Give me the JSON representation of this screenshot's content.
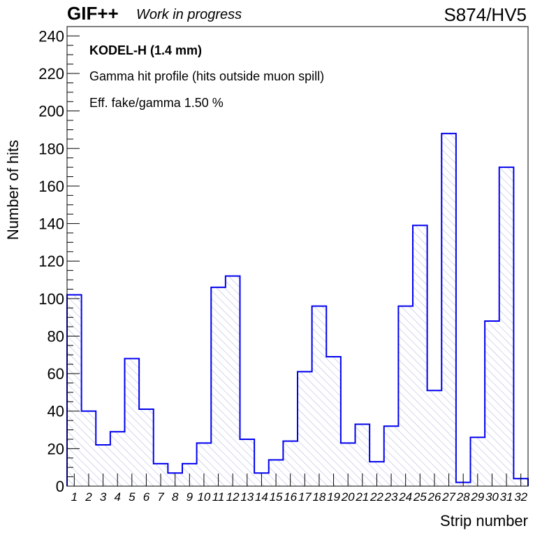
{
  "header": {
    "brand": "GIF++",
    "status": "Work in progress",
    "chamber": "S874/HV5"
  },
  "colors": {
    "series": "#0000ee",
    "hatch": "#aab0dd",
    "axis": "#000000"
  },
  "chart_data": {
    "type": "bar",
    "style": "histogram-step-hatched",
    "xlabel": "Strip number",
    "ylabel": "Number of hits",
    "ylim": [
      0,
      245
    ],
    "yticks": [
      0,
      20,
      40,
      60,
      80,
      100,
      120,
      140,
      160,
      180,
      200,
      220,
      240
    ],
    "grid": false,
    "annotations": [
      "KODEL-H (1.4 mm)",
      "Gamma hit profile (hits outside muon spill)",
      "Eff. fake/gamma 1.50 %"
    ],
    "categories": [
      "1",
      "2",
      "3",
      "4",
      "5",
      "6",
      "7",
      "8",
      "9",
      "10",
      "11",
      "12",
      "13",
      "14",
      "15",
      "16",
      "17",
      "18",
      "19",
      "20",
      "21",
      "22",
      "23",
      "24",
      "25",
      "26",
      "27",
      "28",
      "29",
      "30",
      "31",
      "32"
    ],
    "values": [
      102,
      40,
      22,
      29,
      68,
      41,
      12,
      7,
      12,
      23,
      106,
      112,
      25,
      7,
      14,
      24,
      61,
      96,
      69,
      23,
      33,
      13,
      32,
      96,
      139,
      51,
      188,
      2,
      26,
      88,
      170,
      4
    ]
  }
}
